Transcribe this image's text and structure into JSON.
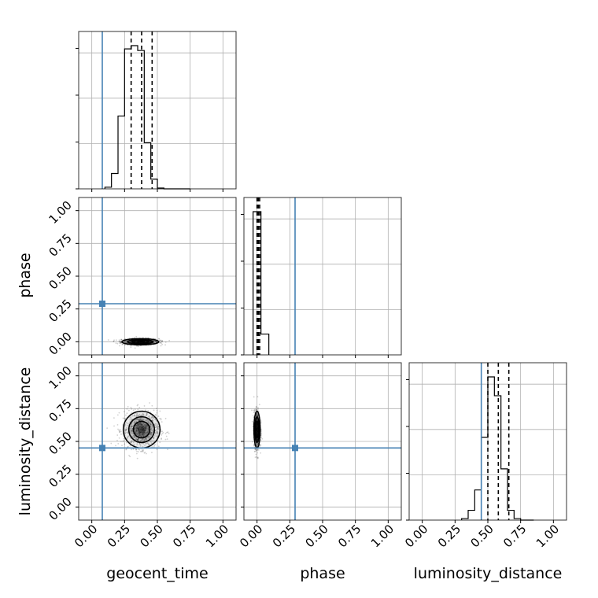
{
  "chart_data": {
    "type": "corner",
    "parameters": [
      "geocent_time",
      "phase",
      "luminosity_distance"
    ],
    "axis_range": [
      -0.1,
      1.1
    ],
    "ticks": [
      0.0,
      0.25,
      0.5,
      0.75,
      1.0
    ],
    "tick_labels": [
      "0.00",
      "0.25",
      "0.50",
      "0.75",
      "1.00"
    ],
    "truths": {
      "geocent_time": 0.08,
      "phase": 0.29,
      "luminosity_distance": 0.45
    },
    "truth_color": "#4682b4",
    "histograms": [
      {
        "parameter": "geocent_time",
        "bin_edges": [
          0.1,
          0.15,
          0.2,
          0.25,
          0.3,
          0.35,
          0.4,
          0.45,
          0.5,
          0.55,
          0.6,
          0.65,
          0.7,
          0.75
        ],
        "counts": [
          2,
          19,
          90,
          173,
          177,
          171,
          57,
          12,
          1,
          0,
          0,
          0,
          0
        ],
        "quantiles": [
          0.3,
          0.38,
          0.46
        ]
      },
      {
        "parameter": "phase",
        "bin_edges": [
          -0.03,
          0.03,
          0.09
        ],
        "counts": [
          179,
          26
        ],
        "quantiles": [
          0.0,
          0.01,
          0.02
        ]
      },
      {
        "parameter": "luminosity_distance",
        "bin_edges": [
          0.3,
          0.35,
          0.4,
          0.45,
          0.5,
          0.55,
          0.6,
          0.65,
          0.7,
          0.75,
          0.8,
          0.85
        ],
        "counts": [
          2,
          13,
          40,
          110,
          190,
          165,
          68,
          13,
          2,
          0,
          0
        ],
        "quantiles": [
          0.5,
          0.58,
          0.66
        ]
      }
    ],
    "scatter_panels": [
      {
        "x": "geocent_time",
        "y": "phase",
        "center": [
          0.37,
          0.0
        ],
        "spread": [
          0.07,
          0.012
        ]
      },
      {
        "x": "geocent_time",
        "y": "luminosity_distance",
        "center": [
          0.38,
          0.59
        ],
        "spread": [
          0.07,
          0.07
        ]
      },
      {
        "x": "phase",
        "y": "luminosity_distance",
        "center": [
          0.0,
          0.59
        ],
        "spread": [
          0.012,
          0.07
        ]
      }
    ],
    "grid": true
  }
}
